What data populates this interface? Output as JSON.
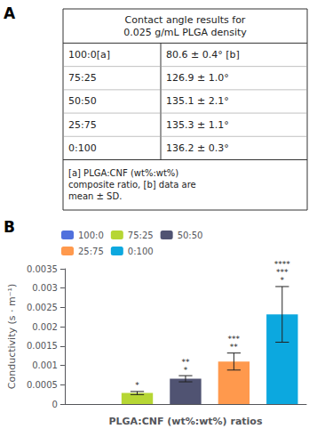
{
  "chart_data": [
    {
      "type": "table",
      "panel_label": "A",
      "title": "Contact angle results for\n0.025 g/mL PLGA density",
      "rows": [
        [
          "100:0[a]",
          "80.6 ± 0.4° [b]"
        ],
        [
          "75:25",
          "126.9 ± 1.0°"
        ],
        [
          "50:50",
          "135.1 ± 2.1°"
        ],
        [
          "25:75",
          "135.3 ± 1.1°"
        ],
        [
          "0:100",
          "136.2 ± 0.3°"
        ]
      ],
      "footnote": "[a] PLGA:CNF (wt%:wt%)\ncomposite ratio, [b] data are\nmean ± SD."
    },
    {
      "type": "bar",
      "panel_label": "B",
      "categories": [
        "100:0",
        "75:25",
        "50:50",
        "25:75",
        "0:100"
      ],
      "values": [
        0.0,
        0.000285,
        0.000655,
        0.0011,
        0.00232
      ],
      "errors": [
        0.0,
        4e-05,
        8e-05,
        0.00022,
        0.00072
      ],
      "annotations": [
        null,
        "*",
        "**\n*",
        "***\n**",
        "****\n***\n*"
      ],
      "xlabel": "PLGA:CNF (wt%:wt%) ratios",
      "ylabel": "Conductivity (s · m⁻¹)",
      "ylim": [
        0,
        0.0035
      ],
      "yticks": [
        0,
        0.0005,
        0.001,
        0.0015,
        0.002,
        0.0025,
        0.003,
        0.0035
      ],
      "legend": "upper left",
      "tick_labels": "y",
      "grid": false
    }
  ]
}
